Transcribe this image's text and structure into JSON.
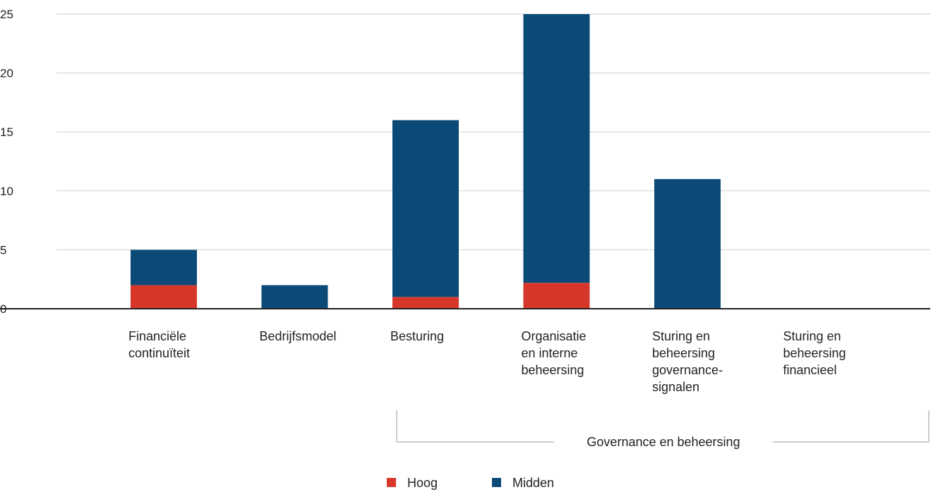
{
  "chart_data": {
    "type": "bar",
    "stacked": true,
    "categories": [
      [
        "Financiële",
        "continuïteit"
      ],
      [
        "Bedrijfsmodel"
      ],
      [
        "Besturing"
      ],
      [
        "Organisatie",
        "en interne",
        "beheersing"
      ],
      [
        "Sturing en",
        "beheersing",
        "governance-",
        "signalen"
      ],
      [
        "Sturing en",
        "beheersing",
        "financieel"
      ]
    ],
    "series": [
      {
        "name": "Hoog",
        "color": "#d7372b",
        "values": [
          2,
          0,
          1,
          2.2,
          0,
          0
        ]
      },
      {
        "name": "Midden",
        "color": "#0b4a77",
        "values": [
          3,
          2,
          15,
          22.8,
          11,
          0
        ]
      }
    ],
    "ylim": [
      0,
      25
    ],
    "yticks": [
      0,
      5,
      10,
      15,
      20,
      25
    ],
    "grid": true,
    "legend_position": "bottom-center",
    "category_group": {
      "label": "Governance en beheersing",
      "from_index": 2,
      "to_index": 5
    }
  }
}
